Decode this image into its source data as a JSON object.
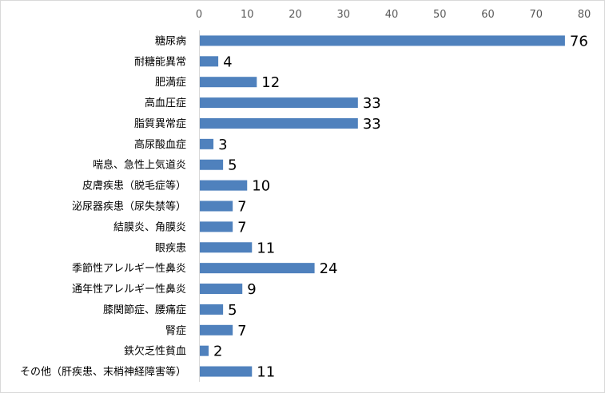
{
  "chart_data": {
    "type": "bar",
    "orientation": "horizontal",
    "categories": [
      "糖尿病",
      "耐糖能異常",
      "肥満症",
      "高血圧症",
      "脂質異常症",
      "高尿酸血症",
      "喘息、急性上気道炎",
      "皮膚疾患（脱毛症等）",
      "泌尿器疾患（尿失禁等）",
      "結膜炎、角膜炎",
      "眼疾患",
      "季節性アレルギー性鼻炎",
      "通年性アレルギー性鼻炎",
      "膝関節症、腰痛症",
      "腎症",
      "鉄欠乏性貧血",
      "その他（肝疾患、末梢神経障害等）"
    ],
    "values": [
      76,
      4,
      12,
      33,
      33,
      3,
      5,
      10,
      7,
      7,
      11,
      24,
      9,
      5,
      7,
      2,
      11
    ],
    "xlim": [
      0,
      80
    ],
    "xticks": [
      0,
      10,
      20,
      30,
      40,
      50,
      60,
      70,
      80
    ],
    "xaxis_position": "top",
    "grid": false,
    "legend": false,
    "bar_color": "#4f81bd",
    "title": "",
    "xlabel": "",
    "ylabel": ""
  }
}
